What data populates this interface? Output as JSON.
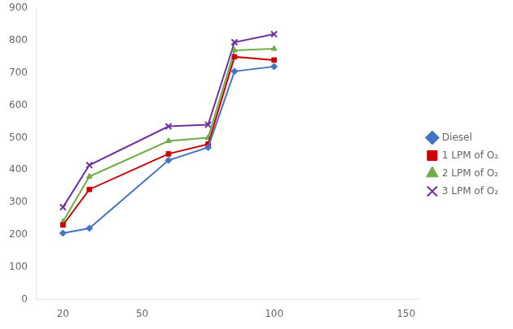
{
  "chart_data": {
    "type": "line",
    "x": [
      20,
      30,
      60,
      75,
      85,
      100
    ],
    "series": [
      {
        "name": "Diesel",
        "color": "#4472C4",
        "marker": "diamond",
        "values": [
          205,
          220,
          430,
          470,
          705,
          720
        ]
      },
      {
        "name": "1 LPM of O₂",
        "color": "#CC0000",
        "marker": "square",
        "values": [
          230,
          340,
          450,
          480,
          750,
          740
        ]
      },
      {
        "name": "2 LPM of O₂",
        "color": "#70AD47",
        "marker": "triangle",
        "values": [
          240,
          380,
          490,
          500,
          770,
          775
        ]
      },
      {
        "name": "3 LPM of O₂",
        "color": "#7030A0",
        "marker": "x",
        "values": [
          285,
          415,
          535,
          540,
          795,
          820
        ]
      }
    ],
    "xlim": [
      10,
      155
    ],
    "ylim": [
      0,
      900
    ],
    "xticks": [
      20,
      50,
      100,
      150
    ],
    "yticks": [
      0,
      100,
      200,
      300,
      400,
      500,
      600,
      700,
      800,
      900
    ],
    "grid": false,
    "legend": "right"
  }
}
